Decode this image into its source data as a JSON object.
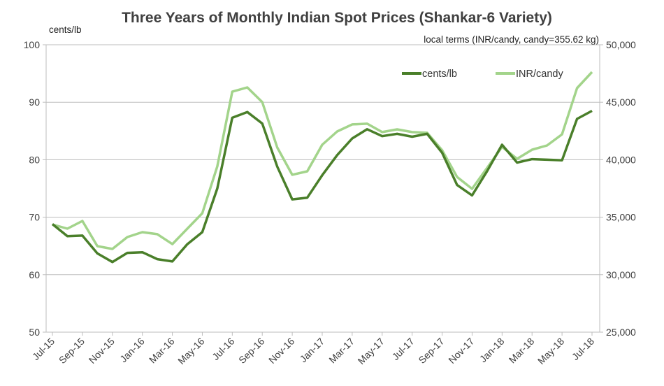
{
  "chart_data": {
    "type": "line",
    "title": "Three Years of Monthly Indian Spot Prices (Shankar-6 Variety)",
    "y_left_label": "cents/lb",
    "y_right_label": "local terms (INR/candy, candy=355.62 kg)",
    "ylim_left": [
      50,
      100
    ],
    "ylim_right": [
      25000,
      50000
    ],
    "yticks_left": [
      "50",
      "60",
      "70",
      "80",
      "90",
      "100"
    ],
    "yticks_right": [
      "25,000",
      "30,000",
      "35,000",
      "40,000",
      "45,000",
      "50,000"
    ],
    "grid": true,
    "legend_position": "top-right",
    "x": [
      "Jul-15",
      "Aug-15",
      "Sep-15",
      "Oct-15",
      "Nov-15",
      "Dec-15",
      "Jan-16",
      "Feb-16",
      "Mar-16",
      "Apr-16",
      "May-16",
      "Jun-16",
      "Jul-16",
      "Aug-16",
      "Sep-16",
      "Oct-16",
      "Nov-16",
      "Dec-16",
      "Jan-17",
      "Feb-17",
      "Mar-17",
      "Apr-17",
      "May-17",
      "Jun-17",
      "Jul-17",
      "Aug-17",
      "Sep-17",
      "Oct-17",
      "Nov-17",
      "Dec-17",
      "Jan-18",
      "Feb-18",
      "Mar-18",
      "Apr-18",
      "May-18",
      "Jun-18",
      "Jul-18"
    ],
    "xtick_labels": [
      "Jul-15",
      "Sep-15",
      "Nov-15",
      "Jan-16",
      "Mar-16",
      "May-16",
      "Jul-16",
      "Sep-16",
      "Nov-16",
      "Jan-17",
      "Mar-17",
      "May-17",
      "Jul-17",
      "Sep-17",
      "Nov-17",
      "Jan-18",
      "Mar-18",
      "May-18",
      "Jul-18"
    ],
    "series": [
      {
        "name": "cents/lb",
        "axis": "left",
        "color": "#4a7f2a",
        "values": [
          68.8,
          66.7,
          66.8,
          63.7,
          62.2,
          63.8,
          63.9,
          62.7,
          62.3,
          65.3,
          67.4,
          75.0,
          87.3,
          88.3,
          86.3,
          78.8,
          73.1,
          73.4,
          77.3,
          80.8,
          83.7,
          85.3,
          84.1,
          84.5,
          84.0,
          84.5,
          81.2,
          75.6,
          73.8,
          78.0,
          82.6,
          79.5,
          80.1,
          80.0,
          79.9,
          87.1,
          88.5
        ]
      },
      {
        "name": "INR/candy",
        "axis": "right",
        "color": "#a3d48b",
        "values": [
          34370,
          34000,
          34670,
          32480,
          32240,
          33270,
          33700,
          33520,
          32660,
          34000,
          35340,
          39420,
          45920,
          46290,
          45010,
          41060,
          38690,
          38990,
          41300,
          42460,
          43070,
          43130,
          42400,
          42640,
          42400,
          42340,
          40820,
          38500,
          37470,
          39290,
          41120,
          40080,
          40870,
          41240,
          42210,
          46230,
          47630
        ]
      }
    ]
  }
}
